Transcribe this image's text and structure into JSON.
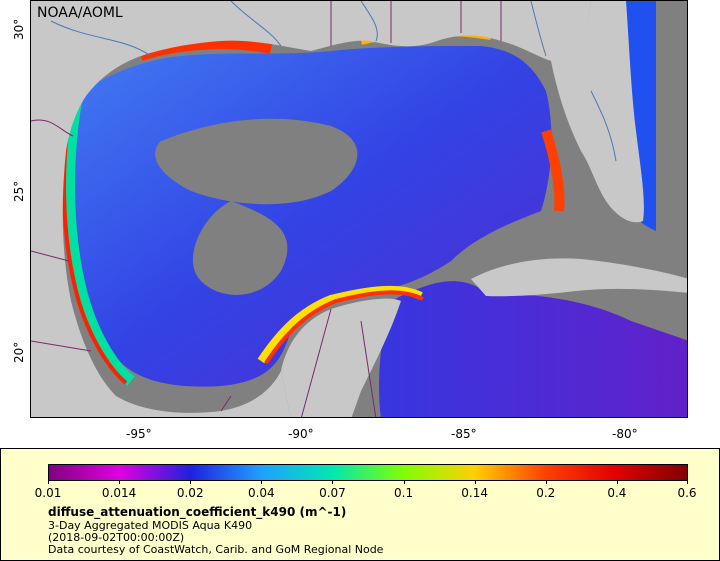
{
  "map": {
    "credit": "NOAA/AOML",
    "lat_ticks": [
      "30°",
      "25°",
      "20°"
    ],
    "lon_ticks": [
      "-95°",
      "-90°",
      "-85°",
      "-80°"
    ],
    "colors": {
      "land": "#c8c8c8",
      "nodata": "#808080",
      "borders": "#7a2a6a",
      "rivers": "#4a7ab8"
    }
  },
  "legend": {
    "colorbar_ticks": [
      "0.01",
      "0.014",
      "0.02",
      "0.04",
      "0.07",
      "0.1",
      "0.14",
      "0.2",
      "0.4",
      "0.6"
    ],
    "colorbar_colors": [
      "#800080",
      "#e000e0",
      "#2020e0",
      "#20a0ff",
      "#00e8b0",
      "#80ff00",
      "#ffd000",
      "#ff4000",
      "#e00000",
      "#800000"
    ],
    "variable": "diffuse_attenuation_coefficient_k490 (m^-1)",
    "product": "3-Day Aggregated MODIS Aqua K490",
    "date": "(2018-09-02T00:00:00Z)",
    "source": "Data courtesy of CoastWatch, Carib. and GoM Regional Node"
  }
}
